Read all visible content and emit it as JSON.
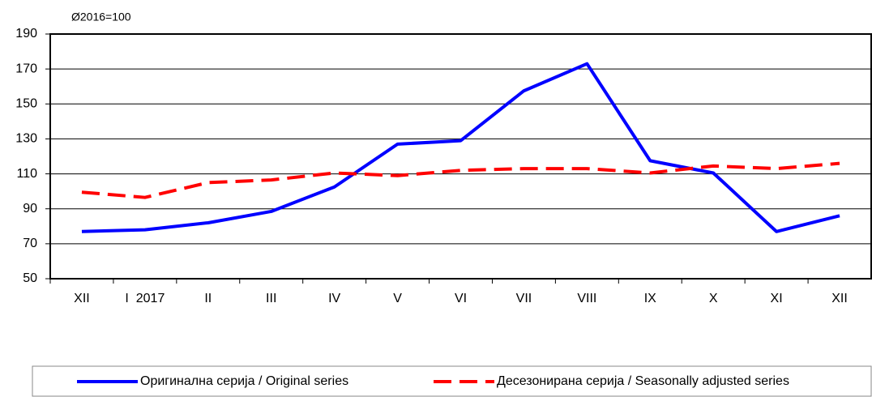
{
  "chart_data": {
    "type": "line",
    "subtitle": "Ø2016=100",
    "categories": [
      "XII",
      "I  2017",
      "II",
      "III",
      "IV",
      "V",
      "VI",
      "VII",
      "VIII",
      "IX",
      "X",
      "XI",
      "XII"
    ],
    "series": [
      {
        "name": "Оригинална серија / Original series",
        "color": "#0000ff",
        "dash": false,
        "values": [
          77,
          78,
          82,
          88.5,
          102.5,
          127,
          129,
          157.5,
          173,
          117.5,
          110.5,
          77,
          86
        ]
      },
      {
        "name": "Десезонирана серија / Seasonally adjusted series",
        "color": "#ff0000",
        "dash": true,
        "values": [
          99.5,
          96.5,
          105,
          106.5,
          110.5,
          109,
          112,
          113,
          113,
          110.5,
          114.5,
          113,
          116
        ]
      }
    ],
    "ylim": [
      50,
      190
    ],
    "yticks": [
      50,
      70,
      90,
      110,
      130,
      150,
      170,
      190
    ],
    "grid": true,
    "legend": "bottom"
  }
}
